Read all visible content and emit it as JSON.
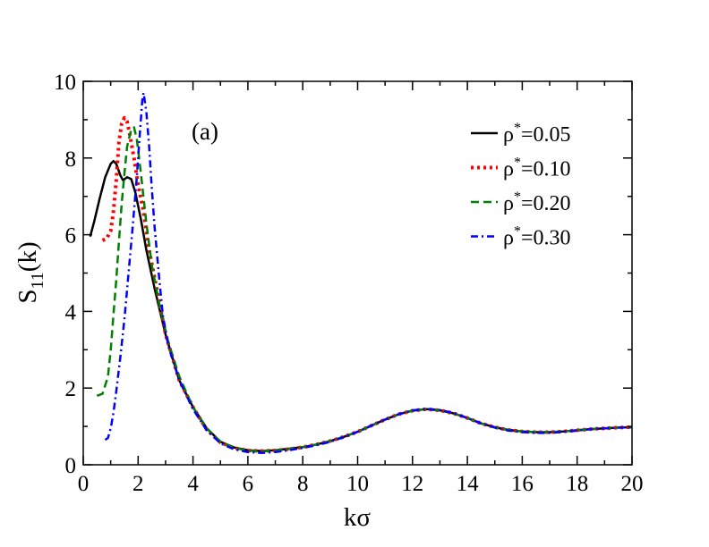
{
  "chart_data": {
    "type": "line",
    "title": "",
    "xlabel": "kσ",
    "ylabel_main": "S",
    "ylabel_sub": "11",
    "ylabel_tail": "(k)",
    "xlim": [
      0,
      20
    ],
    "ylim": [
      0,
      10
    ],
    "x_ticks": [
      0,
      2,
      4,
      6,
      8,
      10,
      12,
      14,
      16,
      18,
      20
    ],
    "y_ticks": [
      0,
      2,
      4,
      6,
      8,
      10
    ],
    "annotation": "(a)",
    "grid": false,
    "legend_position": "top-right",
    "series": [
      {
        "name": "ρ*=0.05",
        "legend_base": "ρ",
        "legend_sup": "*",
        "legend_value": "=0.05",
        "color": "#000000",
        "style": "solid",
        "points": [
          [
            0.25,
            5.95
          ],
          [
            0.4,
            6.35
          ],
          [
            0.6,
            6.95
          ],
          [
            0.8,
            7.5
          ],
          [
            1.0,
            7.85
          ],
          [
            1.1,
            7.92
          ],
          [
            1.2,
            7.85
          ],
          [
            1.35,
            7.55
          ],
          [
            1.45,
            7.42
          ],
          [
            1.6,
            7.5
          ],
          [
            1.75,
            7.45
          ],
          [
            1.9,
            7.1
          ],
          [
            2.1,
            6.4
          ],
          [
            2.3,
            5.6
          ],
          [
            2.6,
            4.6
          ],
          [
            3.0,
            3.4
          ],
          [
            3.5,
            2.2
          ],
          [
            4.0,
            1.5
          ],
          [
            4.5,
            0.95
          ],
          [
            5.0,
            0.6
          ],
          [
            5.5,
            0.45
          ],
          [
            6.0,
            0.38
          ],
          [
            6.5,
            0.36
          ],
          [
            7.0,
            0.38
          ],
          [
            7.5,
            0.42
          ],
          [
            8.0,
            0.46
          ],
          [
            8.5,
            0.53
          ],
          [
            9.0,
            0.62
          ],
          [
            9.5,
            0.73
          ],
          [
            10.0,
            0.86
          ],
          [
            10.5,
            1.02
          ],
          [
            11.0,
            1.18
          ],
          [
            11.5,
            1.32
          ],
          [
            12.0,
            1.41
          ],
          [
            12.5,
            1.45
          ],
          [
            13.0,
            1.42
          ],
          [
            13.5,
            1.34
          ],
          [
            14.0,
            1.22
          ],
          [
            14.5,
            1.08
          ],
          [
            15.0,
            0.98
          ],
          [
            15.5,
            0.91
          ],
          [
            16.0,
            0.87
          ],
          [
            16.5,
            0.85
          ],
          [
            17.0,
            0.85
          ],
          [
            17.5,
            0.87
          ],
          [
            18.0,
            0.9
          ],
          [
            18.5,
            0.93
          ],
          [
            19.0,
            0.95
          ],
          [
            19.5,
            0.97
          ],
          [
            20.0,
            0.98
          ]
        ]
      },
      {
        "name": "ρ*=0.10",
        "legend_base": "ρ",
        "legend_sup": "*",
        "legend_value": "=0.10",
        "color": "#ff0000",
        "style": "dotted",
        "points": [
          [
            0.7,
            5.85
          ],
          [
            0.85,
            5.9
          ],
          [
            1.0,
            6.1
          ],
          [
            1.1,
            6.6
          ],
          [
            1.2,
            7.4
          ],
          [
            1.3,
            8.4
          ],
          [
            1.4,
            8.9
          ],
          [
            1.5,
            9.05
          ],
          [
            1.6,
            8.95
          ],
          [
            1.7,
            8.6
          ],
          [
            1.85,
            8.0
          ],
          [
            2.0,
            7.3
          ],
          [
            2.2,
            6.6
          ],
          [
            2.4,
            5.6
          ],
          [
            2.7,
            4.5
          ],
          [
            3.0,
            3.4
          ],
          [
            3.5,
            2.2
          ],
          [
            4.0,
            1.5
          ],
          [
            4.5,
            0.92
          ],
          [
            5.0,
            0.58
          ],
          [
            5.5,
            0.44
          ],
          [
            6.0,
            0.37
          ],
          [
            6.5,
            0.36
          ],
          [
            7.0,
            0.37
          ],
          [
            7.5,
            0.41
          ],
          [
            8.0,
            0.46
          ],
          [
            8.5,
            0.53
          ],
          [
            9.0,
            0.62
          ],
          [
            9.5,
            0.73
          ],
          [
            10.0,
            0.86
          ],
          [
            10.5,
            1.02
          ],
          [
            11.0,
            1.18
          ],
          [
            11.5,
            1.32
          ],
          [
            12.0,
            1.41
          ],
          [
            12.5,
            1.45
          ],
          [
            13.0,
            1.42
          ],
          [
            13.5,
            1.34
          ],
          [
            14.0,
            1.22
          ],
          [
            14.5,
            1.08
          ],
          [
            15.0,
            0.98
          ],
          [
            15.5,
            0.91
          ],
          [
            16.0,
            0.87
          ],
          [
            16.5,
            0.85
          ],
          [
            17.0,
            0.85
          ],
          [
            17.5,
            0.87
          ],
          [
            18.0,
            0.9
          ],
          [
            18.5,
            0.93
          ],
          [
            19.0,
            0.95
          ],
          [
            19.5,
            0.97
          ],
          [
            20.0,
            0.98
          ]
        ]
      },
      {
        "name": "ρ*=0.20",
        "legend_base": "ρ",
        "legend_sup": "*",
        "legend_value": "=0.20",
        "color": "#008000",
        "style": "dashed",
        "points": [
          [
            0.5,
            1.8
          ],
          [
            0.7,
            1.85
          ],
          [
            0.9,
            2.3
          ],
          [
            1.0,
            3.0
          ],
          [
            1.1,
            3.9
          ],
          [
            1.2,
            4.8
          ],
          [
            1.3,
            5.8
          ],
          [
            1.4,
            6.8
          ],
          [
            1.5,
            7.6
          ],
          [
            1.6,
            8.3
          ],
          [
            1.75,
            8.75
          ],
          [
            1.85,
            8.8
          ],
          [
            1.95,
            8.5
          ],
          [
            2.1,
            7.6
          ],
          [
            2.3,
            6.3
          ],
          [
            2.5,
            5.2
          ],
          [
            2.8,
            4.1
          ],
          [
            3.1,
            3.2
          ],
          [
            3.5,
            2.3
          ],
          [
            4.0,
            1.5
          ],
          [
            4.5,
            0.95
          ],
          [
            5.0,
            0.6
          ],
          [
            5.5,
            0.44
          ],
          [
            6.0,
            0.37
          ],
          [
            6.5,
            0.35
          ],
          [
            7.0,
            0.37
          ],
          [
            7.5,
            0.41
          ],
          [
            8.0,
            0.46
          ],
          [
            8.5,
            0.53
          ],
          [
            9.0,
            0.62
          ],
          [
            9.5,
            0.73
          ],
          [
            10.0,
            0.86
          ],
          [
            10.5,
            1.02
          ],
          [
            11.0,
            1.18
          ],
          [
            11.5,
            1.32
          ],
          [
            12.0,
            1.41
          ],
          [
            12.5,
            1.45
          ],
          [
            13.0,
            1.42
          ],
          [
            13.5,
            1.34
          ],
          [
            14.0,
            1.22
          ],
          [
            14.5,
            1.08
          ],
          [
            15.0,
            0.98
          ],
          [
            15.5,
            0.91
          ],
          [
            16.0,
            0.87
          ],
          [
            16.5,
            0.85
          ],
          [
            17.0,
            0.85
          ],
          [
            17.5,
            0.87
          ],
          [
            18.0,
            0.9
          ],
          [
            18.5,
            0.93
          ],
          [
            19.0,
            0.95
          ],
          [
            19.5,
            0.97
          ],
          [
            20.0,
            0.98
          ]
        ]
      },
      {
        "name": "ρ*=0.30",
        "legend_base": "ρ",
        "legend_sup": "*",
        "legend_value": "=0.30",
        "color": "#0000ff",
        "style": "dashdot",
        "points": [
          [
            0.8,
            0.65
          ],
          [
            0.9,
            0.7
          ],
          [
            1.0,
            0.95
          ],
          [
            1.1,
            1.35
          ],
          [
            1.2,
            1.9
          ],
          [
            1.35,
            2.8
          ],
          [
            1.5,
            3.8
          ],
          [
            1.65,
            5.0
          ],
          [
            1.8,
            6.2
          ],
          [
            1.95,
            7.5
          ],
          [
            2.05,
            8.5
          ],
          [
            2.15,
            9.5
          ],
          [
            2.2,
            9.7
          ],
          [
            2.3,
            9.2
          ],
          [
            2.4,
            8.3
          ],
          [
            2.5,
            7.2
          ],
          [
            2.6,
            6.2
          ],
          [
            2.75,
            5.0
          ],
          [
            2.9,
            3.9
          ],
          [
            3.1,
            3.1
          ],
          [
            3.5,
            2.2
          ],
          [
            4.0,
            1.45
          ],
          [
            4.5,
            0.9
          ],
          [
            5.0,
            0.56
          ],
          [
            5.5,
            0.4
          ],
          [
            6.0,
            0.33
          ],
          [
            6.5,
            0.31
          ],
          [
            7.0,
            0.33
          ],
          [
            7.5,
            0.38
          ],
          [
            8.0,
            0.44
          ],
          [
            8.5,
            0.51
          ],
          [
            9.0,
            0.6
          ],
          [
            9.5,
            0.72
          ],
          [
            10.0,
            0.86
          ],
          [
            10.5,
            1.02
          ],
          [
            11.0,
            1.18
          ],
          [
            11.5,
            1.32
          ],
          [
            12.0,
            1.42
          ],
          [
            12.5,
            1.46
          ],
          [
            13.0,
            1.43
          ],
          [
            13.5,
            1.35
          ],
          [
            14.0,
            1.22
          ],
          [
            14.5,
            1.08
          ],
          [
            15.0,
            0.97
          ],
          [
            15.5,
            0.89
          ],
          [
            16.0,
            0.85
          ],
          [
            16.5,
            0.83
          ],
          [
            17.0,
            0.83
          ],
          [
            17.5,
            0.86
          ],
          [
            18.0,
            0.89
          ],
          [
            18.5,
            0.93
          ],
          [
            19.0,
            0.95
          ],
          [
            19.5,
            0.97
          ],
          [
            20.0,
            0.98
          ]
        ]
      }
    ]
  }
}
